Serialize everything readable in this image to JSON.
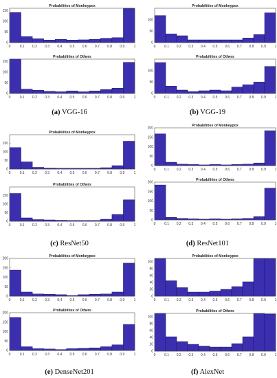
{
  "captions": [
    {
      "letter": "(a)",
      "name": "VGG-16"
    },
    {
      "letter": "(b)",
      "name": "VGG-19"
    },
    {
      "letter": "(c)",
      "name": "ResNet50"
    },
    {
      "letter": "(d)",
      "name": "ResNet101"
    },
    {
      "letter": "(e)",
      "name": "DenseNet201"
    },
    {
      "letter": "(f)",
      "name": "AlexNet"
    }
  ],
  "colors": {
    "bar_fill": "#3b2fb0",
    "bar_edge": "#1a1560",
    "axis": "#555555"
  },
  "chart_data": [
    {
      "type": "bar",
      "model": "VGG-16",
      "title": "Probabilities of Monkeypox",
      "xlabel": "",
      "ylabel": "",
      "x_ticks": [
        "0",
        "0.1",
        "0.2",
        "0.3",
        "0.4",
        "0.5",
        "0.6",
        "0.7",
        "0.8",
        "0.9",
        "1"
      ],
      "y_ticks": [
        "0",
        "50",
        "100",
        "150"
      ],
      "ylim": [
        0,
        160
      ],
      "values": [
        140,
        28,
        18,
        12,
        15,
        12,
        13,
        15,
        20,
        23,
        160
      ]
    },
    {
      "type": "bar",
      "model": "VGG-16",
      "title": "Probabilities of Others",
      "xlabel": "",
      "ylabel": "",
      "x_ticks": [
        "0",
        "0.1",
        "0.2",
        "0.3",
        "0.4",
        "0.5",
        "0.6",
        "0.7",
        "0.8",
        "0.9",
        "1"
      ],
      "y_ticks": [
        "0",
        "50",
        "100",
        "150"
      ],
      "ylim": [
        0,
        160
      ],
      "values": [
        160,
        20,
        15,
        10,
        8,
        12,
        8,
        12,
        18,
        25,
        145
      ]
    },
    {
      "type": "bar",
      "model": "VGG-19",
      "title": "Probabilities of Monkeypox",
      "xlabel": "",
      "ylabel": "",
      "x_ticks": [
        "0",
        "0.1",
        "0.2",
        "0.3",
        "0.4",
        "0.5",
        "0.6",
        "0.7",
        "0.8",
        "0.9",
        "1"
      ],
      "y_ticks": [
        "0",
        "50",
        "100"
      ],
      "ylim": [
        0,
        150
      ],
      "values": [
        118,
        38,
        30,
        12,
        12,
        12,
        12,
        12,
        20,
        35,
        130
      ]
    },
    {
      "type": "bar",
      "model": "VGG-19",
      "title": "Probabilities of Others",
      "xlabel": "",
      "ylabel": "",
      "x_ticks": [
        "0",
        "0.1",
        "0.2",
        "0.3",
        "0.4",
        "0.5",
        "0.6",
        "0.7",
        "0.8",
        "0.9",
        "1"
      ],
      "y_ticks": [
        "0",
        "50",
        "100"
      ],
      "ylim": [
        0,
        150
      ],
      "values": [
        135,
        32,
        15,
        8,
        12,
        15,
        12,
        28,
        38,
        50,
        118
      ]
    },
    {
      "type": "bar",
      "model": "ResNet50",
      "title": "Probabilities of Monkeypox",
      "xlabel": "",
      "ylabel": "",
      "x_ticks": [
        "0",
        "0.1",
        "0.2",
        "0.3",
        "0.4",
        "0.5",
        "0.6",
        "0.7",
        "0.8",
        "0.9",
        "1"
      ],
      "y_ticks": [
        "0",
        "50",
        "100",
        "150"
      ],
      "ylim": [
        0,
        200
      ],
      "values": [
        125,
        42,
        10,
        6,
        5,
        5,
        5,
        5,
        8,
        20,
        162
      ]
    },
    {
      "type": "bar",
      "model": "ResNet50",
      "title": "Probabilities of Others",
      "xlabel": "",
      "ylabel": "",
      "x_ticks": [
        "0",
        "0.1",
        "0.2",
        "0.3",
        "0.4",
        "0.5",
        "0.6",
        "0.7",
        "0.8",
        "0.9",
        "1"
      ],
      "y_ticks": [
        "0",
        "50",
        "100",
        "150"
      ],
      "ylim": [
        0,
        200
      ],
      "values": [
        162,
        20,
        10,
        8,
        6,
        5,
        5,
        5,
        12,
        40,
        125
      ]
    },
    {
      "type": "bar",
      "model": "ResNet101",
      "title": "Probabilities of Monkeypox",
      "xlabel": "",
      "ylabel": "",
      "x_ticks": [
        "0",
        "0.1",
        "0.2",
        "0.3",
        "0.4",
        "0.5",
        "0.6",
        "0.7",
        "0.8",
        "0.9",
        "1"
      ],
      "y_ticks": [
        "0",
        "50",
        "100",
        "150",
        "200"
      ],
      "ylim": [
        0,
        200
      ],
      "values": [
        168,
        18,
        8,
        6,
        4,
        6,
        4,
        6,
        8,
        14,
        185
      ]
    },
    {
      "type": "bar",
      "model": "ResNet101",
      "title": "Probabilities of Others",
      "xlabel": "",
      "ylabel": "",
      "x_ticks": [
        "0",
        "0.1",
        "0.2",
        "0.3",
        "0.4",
        "0.5",
        "0.6",
        "0.7",
        "0.8",
        "0.9",
        "1"
      ],
      "y_ticks": [
        "0",
        "50",
        "100",
        "150",
        "200"
      ],
      "ylim": [
        0,
        200
      ],
      "values": [
        185,
        14,
        8,
        6,
        4,
        6,
        4,
        6,
        8,
        18,
        168
      ]
    },
    {
      "type": "bar",
      "model": "DenseNet201",
      "title": "Probabilities of Monkeypox",
      "xlabel": "",
      "ylabel": "",
      "x_ticks": [
        "0",
        "0.1",
        "0.2",
        "0.3",
        "0.4",
        "0.5",
        "0.6",
        "0.7",
        "0.8",
        "0.9",
        "1"
      ],
      "y_ticks": [
        "0",
        "50",
        "100",
        "150",
        "200"
      ],
      "ylim": [
        0,
        200
      ],
      "values": [
        138,
        22,
        12,
        10,
        8,
        4,
        8,
        10,
        12,
        22,
        175
      ]
    },
    {
      "type": "bar",
      "model": "DenseNet201",
      "title": "Probabilities of Others",
      "xlabel": "",
      "ylabel": "",
      "x_ticks": [
        "0",
        "0.1",
        "0.2",
        "0.3",
        "0.4",
        "0.5",
        "0.6",
        "0.7",
        "0.8",
        "0.9",
        "1"
      ],
      "y_ticks": [
        "0",
        "50",
        "100",
        "150",
        "200"
      ],
      "ylim": [
        0,
        200
      ],
      "values": [
        175,
        20,
        10,
        8,
        5,
        10,
        12,
        14,
        20,
        30,
        138
      ]
    },
    {
      "type": "bar",
      "model": "AlexNet",
      "title": "Probabilities of Monkeypox",
      "xlabel": "",
      "ylabel": "",
      "x_ticks": [
        "0",
        "0.1",
        "0.2",
        "0.3",
        "0.4",
        "0.5",
        "0.6",
        "0.7",
        "0.8",
        "0.9",
        "1"
      ],
      "y_ticks": [
        "0",
        "20",
        "40",
        "60",
        "80",
        "100"
      ],
      "ylim": [
        0,
        110
      ],
      "values": [
        110,
        45,
        25,
        12,
        12,
        15,
        20,
        28,
        42,
        110,
        110
      ]
    },
    {
      "type": "bar",
      "model": "AlexNet",
      "title": "Probabilities of Others",
      "xlabel": "",
      "ylabel": "",
      "x_ticks": [
        "0",
        "0.1",
        "0.2",
        "0.3",
        "0.4",
        "0.5",
        "0.6",
        "0.7",
        "0.8",
        "0.9",
        "1"
      ],
      "y_ticks": [
        "0",
        "20",
        "40",
        "60",
        "80",
        "100"
      ],
      "ylim": [
        0,
        110
      ],
      "values": [
        110,
        42,
        28,
        20,
        15,
        12,
        12,
        22,
        42,
        110,
        108
      ]
    }
  ]
}
